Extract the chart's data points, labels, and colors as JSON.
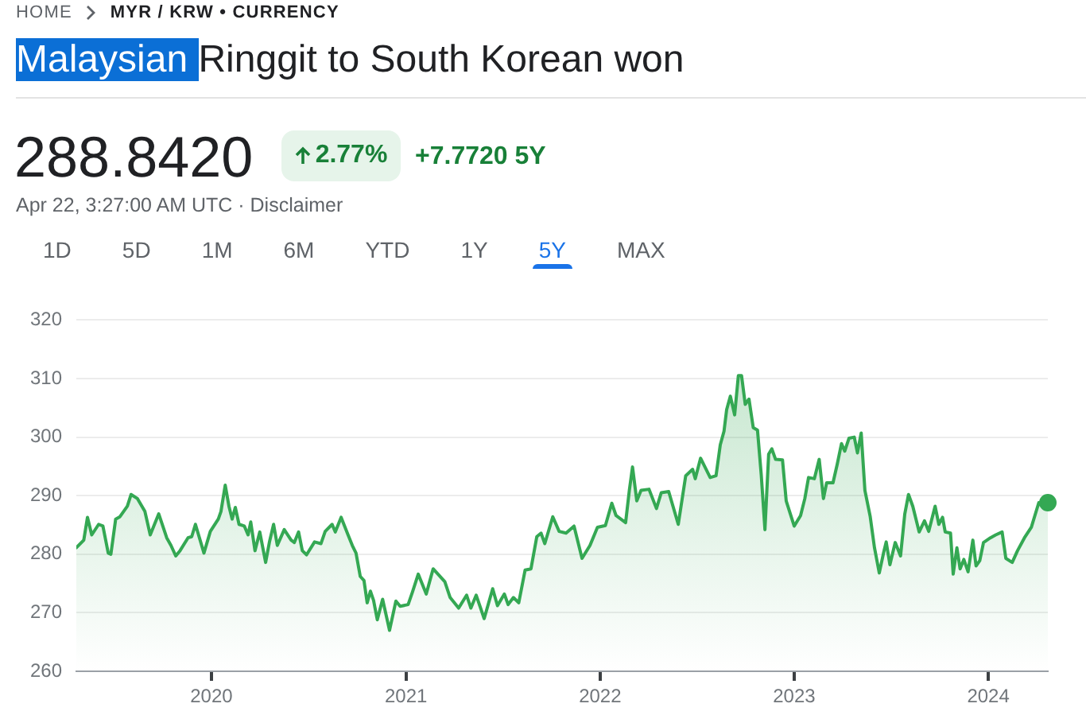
{
  "chart_data": {
    "type": "area",
    "title": "Malaysian Ringgit to South Korean won",
    "annotations": [
      "HOME",
      "MYR / KRW • CURRENCY",
      "288.8420",
      "2.77%",
      "+7.7720 5Y",
      "Apr 22, 3:27:00 AM UTC · Disclaimer",
      "1D",
      "5D",
      "1M",
      "6M",
      "YTD",
      "1Y",
      "5Y",
      "MAX"
    ],
    "x": [
      "2019-04-22",
      "2019-05-06",
      "2019-05-13",
      "2019-05-21",
      "2019-06-03",
      "2019-06-11",
      "2019-06-21",
      "2019-06-26",
      "2019-07-05",
      "2019-07-13",
      "2019-07-27",
      "2019-08-03",
      "2019-08-15",
      "2019-08-29",
      "2019-09-08",
      "2019-09-24",
      "2019-10-09",
      "2019-10-17",
      "2019-10-26",
      "2019-11-03",
      "2019-11-18",
      "2019-11-25",
      "2019-12-02",
      "2019-12-18",
      "2019-12-30",
      "2020-01-14",
      "2020-01-19",
      "2020-01-27",
      "2020-02-03",
      "2020-02-09",
      "2020-02-15",
      "2020-02-22",
      "2020-03-03",
      "2020-03-10",
      "2020-03-15",
      "2020-03-23",
      "2020-04-01",
      "2020-04-12",
      "2020-04-19",
      "2020-04-27",
      "2020-05-04",
      "2020-05-17",
      "2020-05-30",
      "2020-06-05",
      "2020-06-13",
      "2020-06-20",
      "2020-06-28",
      "2020-07-13",
      "2020-07-25",
      "2020-08-02",
      "2020-08-15",
      "2020-08-21",
      "2020-09-01",
      "2020-09-14",
      "2020-09-22",
      "2020-09-29",
      "2020-10-07",
      "2020-10-14",
      "2020-10-20",
      "2020-10-26",
      "2020-11-01",
      "2020-11-08",
      "2020-11-18",
      "2020-12-01",
      "2020-12-13",
      "2020-12-21",
      "2021-01-05",
      "2021-01-13",
      "2021-01-24",
      "2021-02-08",
      "2021-02-21",
      "2021-03-15",
      "2021-03-25",
      "2021-04-10",
      "2021-04-25",
      "2021-05-03",
      "2021-05-13",
      "2021-05-28",
      "2021-06-13",
      "2021-06-22",
      "2021-07-05",
      "2021-07-12",
      "2021-07-22",
      "2021-08-01",
      "2021-08-13",
      "2021-08-24",
      "2021-09-04",
      "2021-09-12",
      "2021-09-19",
      "2021-10-04",
      "2021-10-16",
      "2021-10-29",
      "2021-11-13",
      "2021-11-28",
      "2021-12-13",
      "2021-12-27",
      "2022-01-11",
      "2022-01-23",
      "2022-01-31",
      "2022-02-18",
      "2022-02-25",
      "2022-03-03",
      "2022-03-11",
      "2022-03-19",
      "2022-04-03",
      "2022-04-17",
      "2022-04-26",
      "2022-05-10",
      "2022-05-28",
      "2022-06-11",
      "2022-06-24",
      "2022-06-29",
      "2022-07-09",
      "2022-07-27",
      "2022-08-07",
      "2022-08-15",
      "2022-08-22",
      "2022-08-27",
      "2022-09-03",
      "2022-09-11",
      "2022-09-18",
      "2022-09-24",
      "2022-10-01",
      "2022-10-08",
      "2022-10-16",
      "2022-10-24",
      "2022-10-31",
      "2022-11-07",
      "2022-11-14",
      "2022-11-20",
      "2022-11-27",
      "2022-12-10",
      "2022-12-17",
      "2023-01-01",
      "2023-01-13",
      "2023-01-21",
      "2023-01-28",
      "2023-02-08",
      "2023-02-17",
      "2023-02-25",
      "2023-03-03",
      "2023-03-15",
      "2023-03-23",
      "2023-03-31",
      "2023-04-06",
      "2023-04-14",
      "2023-04-24",
      "2023-04-30",
      "2023-05-07",
      "2023-05-14",
      "2023-05-24",
      "2023-06-01",
      "2023-06-10",
      "2023-06-18",
      "2023-06-23",
      "2023-06-30",
      "2023-07-10",
      "2023-07-20",
      "2023-07-28",
      "2023-08-04",
      "2023-08-12",
      "2023-08-24",
      "2023-09-03",
      "2023-09-11",
      "2023-09-23",
      "2023-09-30",
      "2023-10-07",
      "2023-10-12",
      "2023-10-22",
      "2023-10-27",
      "2023-11-03",
      "2023-11-09",
      "2023-11-16",
      "2023-11-24",
      "2023-12-03",
      "2023-12-09",
      "2023-12-16",
      "2023-12-23",
      "2024-01-05",
      "2024-01-15",
      "2024-01-27",
      "2024-02-03",
      "2024-02-15",
      "2024-02-25",
      "2024-03-09",
      "2024-03-22",
      "2024-04-05",
      "2024-04-11",
      "2024-04-22"
    ],
    "series": [
      {
        "color": "#34a853",
        "values": [
          281.1,
          282.4,
          286.3,
          283.3,
          285.1,
          284.8,
          280.2,
          280.0,
          286.0,
          286.4,
          288.2,
          290.2,
          289.5,
          287.3,
          283.3,
          286.9,
          282.8,
          281.5,
          279.7,
          280.6,
          282.8,
          283.0,
          285.1,
          280.2,
          283.9,
          286.0,
          287.3,
          291.8,
          288.2,
          286.0,
          288.0,
          285.1,
          284.8,
          283.3,
          285.5,
          280.6,
          283.8,
          278.6,
          282.0,
          285.1,
          281.5,
          284.2,
          282.4,
          282.0,
          283.8,
          280.6,
          279.9,
          282.1,
          281.8,
          283.9,
          285.1,
          283.8,
          286.3,
          283.3,
          281.5,
          280.2,
          276.2,
          275.5,
          271.7,
          273.7,
          272.1,
          268.8,
          272.3,
          267.0,
          272.0,
          271.1,
          271.4,
          273.5,
          276.6,
          273.2,
          277.5,
          275.3,
          272.6,
          270.8,
          273.0,
          270.8,
          273.0,
          269.0,
          274.1,
          271.2,
          273.2,
          271.4,
          272.6,
          271.7,
          277.3,
          277.5,
          283.0,
          283.6,
          281.8,
          286.4,
          283.9,
          283.6,
          284.8,
          279.3,
          281.5,
          284.6,
          284.9,
          288.7,
          286.6,
          285.4,
          290.9,
          294.9,
          289.1,
          290.9,
          291.1,
          287.8,
          290.5,
          290.7,
          285.1,
          293.4,
          294.5,
          292.9,
          296.4,
          293.1,
          293.4,
          298.7,
          301.0,
          304.7,
          307.0,
          303.8,
          310.5,
          310.5,
          305.6,
          306.5,
          301.6,
          301.2,
          293.6,
          284.2,
          297.1,
          298.0,
          296.2,
          296.1,
          289.1,
          284.8,
          286.6,
          289.5,
          293.1,
          292.9,
          296.2,
          289.5,
          292.2,
          292.2,
          295.4,
          298.9,
          297.6,
          299.8,
          300.0,
          297.3,
          300.7,
          290.9,
          286.4,
          281.1,
          276.8,
          280.2,
          282.1,
          278.2,
          282.0,
          279.7,
          286.9,
          290.2,
          288.2,
          283.8,
          285.7,
          283.9,
          288.2,
          285.1,
          286.3,
          283.8,
          283.6,
          276.6,
          281.1,
          277.5,
          279.1,
          277.0,
          282.4,
          278.0,
          278.9,
          282.0,
          282.8,
          283.3,
          283.8,
          279.3,
          278.6,
          280.6,
          282.8,
          284.6,
          288.8,
          288.2,
          288.8
        ]
      },
      {
        "type": "scatter",
        "color": "#34a853",
        "x": [
          "2024-04-22"
        ],
        "values": [
          288.8
        ]
      }
    ],
    "xlim": [
      "2019-04-22",
      "2024-04-22"
    ],
    "xticks": [
      "2020",
      "2021",
      "2022",
      "2023",
      "2024"
    ],
    "ylim": [
      260,
      320
    ],
    "yticks": [
      260,
      270,
      280,
      290,
      300,
      310,
      320
    ],
    "grid": "y"
  }
}
